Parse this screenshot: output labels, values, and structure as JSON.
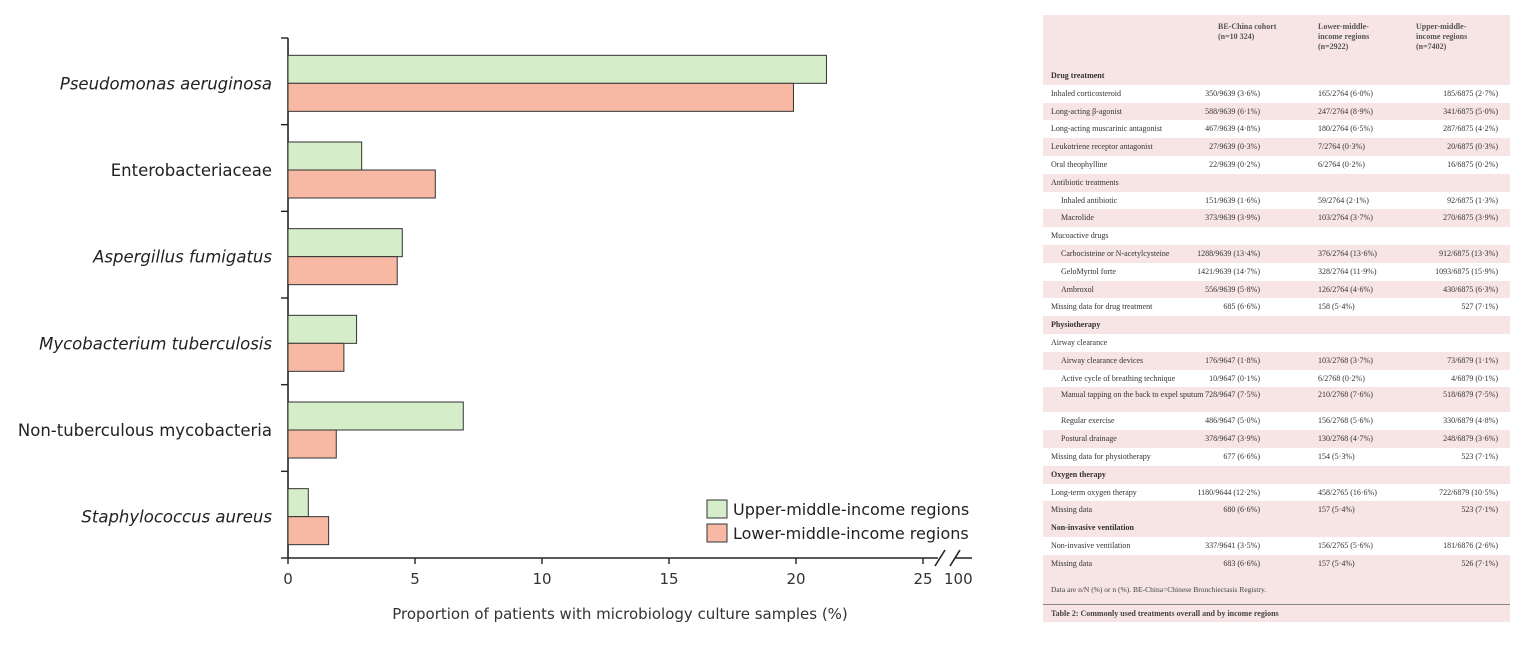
{
  "chart_data": {
    "type": "bar",
    "orientation": "horizontal",
    "categories": [
      "Pseudomonas aeruginosa",
      "Enterobacteriaceae",
      "Aspergillus fumigatus",
      "Mycobacterium tuberculosis",
      "Non-tuberculous mycobacteria",
      "Staphylococcus aureus"
    ],
    "category_italic": [
      true,
      false,
      true,
      true,
      false,
      true
    ],
    "series": [
      {
        "name": "Upper-middle-income regions",
        "color": "#d5edc9",
        "values": [
          21.2,
          2.9,
          4.5,
          2.7,
          6.9,
          0.8
        ]
      },
      {
        "name": "Lower-middle-income regions",
        "color": "#f7b9a4",
        "values": [
          19.9,
          5.8,
          4.3,
          2.2,
          1.9,
          1.6
        ]
      }
    ],
    "xlabel": "Proportion of patients with microbiology culture samples (%)",
    "ylabel": "",
    "xlim": [
      0,
      25
    ],
    "xticks": [
      "0",
      "5",
      "10",
      "15",
      "20",
      "25"
    ],
    "axis_break_label": "100",
    "legend_position": "bottom-right",
    "grid": false
  },
  "table": {
    "headers": [
      "",
      "BE-China cohort\n(n=10 324)",
      "Lower-middle-\nincome regions\n(n=2922)",
      "Upper-middle-\nincome regions\n(n=7402)"
    ],
    "rows": [
      {
        "kind": "section",
        "cells": [
          "Drug treatment",
          "",
          "",
          ""
        ]
      },
      {
        "kind": "white",
        "cells": [
          "Inhaled corticosteroid",
          "350/9639 (3·6%)",
          "165/2764 (6·0%)",
          "185/6875 (2·7%)"
        ]
      },
      {
        "kind": "plain",
        "cells": [
          "Long-acting β-agonist",
          "588/9639 (6·1%)",
          "247/2764 (8·9%)",
          "341/6875 (5·0%)"
        ]
      },
      {
        "kind": "white",
        "cells": [
          "Long-acting muscarinic antagonist",
          "467/9639 (4·8%)",
          "180/2764 (6·5%)",
          "287/6875 (4·2%)"
        ]
      },
      {
        "kind": "plain",
        "cells": [
          "Leukotriene receptor antagonist",
          "27/9639 (0·3%)",
          "7/2764 (0·3%)",
          "20/6875 (0·3%)"
        ]
      },
      {
        "kind": "white",
        "cells": [
          "Oral theophylline",
          "22/9639 (0·2%)",
          "6/2764 (0·2%)",
          "16/6875 (0·2%)"
        ]
      },
      {
        "kind": "plain",
        "cells": [
          "Antibiotic treatments",
          "",
          "",
          ""
        ]
      },
      {
        "kind": "white",
        "indent": true,
        "cells": [
          "Inhaled antibiotic",
          "151/9639 (1·6%)",
          "59/2764 (2·1%)",
          "92/6875 (1·3%)"
        ]
      },
      {
        "kind": "plain",
        "indent": true,
        "cells": [
          "Macrolide",
          "373/9639 (3·9%)",
          "103/2764 (3·7%)",
          "270/6875 (3·9%)"
        ]
      },
      {
        "kind": "white",
        "cells": [
          "Mucoactive drugs",
          "",
          "",
          ""
        ]
      },
      {
        "kind": "plain",
        "indent": true,
        "cells": [
          "Carbocisteine or N-acetylcysteine",
          "1288/9639 (13·4%)",
          "376/2764 (13·6%)",
          "912/6875 (13·3%)"
        ]
      },
      {
        "kind": "white",
        "indent": true,
        "cells": [
          "GeloMyrtol forte",
          "1421/9639 (14·7%)",
          "328/2764 (11·9%)",
          "1093/6875 (15·9%)"
        ]
      },
      {
        "kind": "plain",
        "indent": true,
        "cells": [
          "Ambroxol",
          "556/9639 (5·8%)",
          "126/2764 (4·6%)",
          "430/6875 (6·3%)"
        ]
      },
      {
        "kind": "white",
        "cells": [
          "Missing data for drug treatment",
          "685 (6·6%)",
          "158 (5·4%)",
          "527 (7·1%)"
        ]
      },
      {
        "kind": "section",
        "cells": [
          "Physiotherapy",
          "",
          "",
          ""
        ]
      },
      {
        "kind": "white",
        "cells": [
          "Airway clearance",
          "",
          "",
          ""
        ]
      },
      {
        "kind": "plain",
        "indent": true,
        "cells": [
          "Airway clearance devices",
          "176/9647 (1·8%)",
          "103/2768 (3·7%)",
          "73/6879 (1·1%)"
        ]
      },
      {
        "kind": "white",
        "indent": true,
        "cells": [
          "Active cycle of breathing technique",
          "10/9647 (0·1%)",
          "6/2768 (0·2%)",
          "4/6879 (0·1%)"
        ]
      },
      {
        "kind": "plain",
        "indent": true,
        "double": true,
        "cells": [
          "Manual tapping on the back to expel sputum",
          "728/9647 (7·5%)",
          "210/2768 (7·6%)",
          "518/6879 (7·5%)"
        ]
      },
      {
        "kind": "white",
        "indent": true,
        "cells": [
          "Regular exercise",
          "486/9647 (5·0%)",
          "156/2768 (5·6%)",
          "330/6879 (4·8%)"
        ]
      },
      {
        "kind": "plain",
        "indent": true,
        "cells": [
          "Postural drainage",
          "378/9647 (3·9%)",
          "130/2768 (4·7%)",
          "248/6879 (3·6%)"
        ]
      },
      {
        "kind": "white",
        "cells": [
          "Missing data for physiotherapy",
          "677 (6·6%)",
          "154 (5·3%)",
          "523 (7·1%)"
        ]
      },
      {
        "kind": "section",
        "cells": [
          "Oxygen therapy",
          "",
          "",
          ""
        ]
      },
      {
        "kind": "white",
        "cells": [
          "Long-term oxygen therapy",
          "1180/9644 (12·2%)",
          "458/2765 (16·6%)",
          "722/6879 (10·5%)"
        ]
      },
      {
        "kind": "plain",
        "cells": [
          "Missing data",
          "680 (6·6%)",
          "157 (5·4%)",
          "523 (7·1%)"
        ]
      },
      {
        "kind": "section",
        "cells": [
          "Non-invasive ventilation",
          "",
          "",
          ""
        ]
      },
      {
        "kind": "white",
        "cells": [
          "Non-invasive ventilation",
          "337/9641 (3·5%)",
          "156/2765 (5·6%)",
          "181/6876 (2·6%)"
        ]
      },
      {
        "kind": "plain",
        "cells": [
          "Missing data",
          "683 (6·6%)",
          "157 (5·4%)",
          "526 (7·1%)"
        ]
      }
    ],
    "footnote": "Data are n/N (%) or n (%). BE-China=Chinese Bronchiectasis Registry.",
    "caption": "Table 2: Commonly used treatments overall and by income regions"
  }
}
